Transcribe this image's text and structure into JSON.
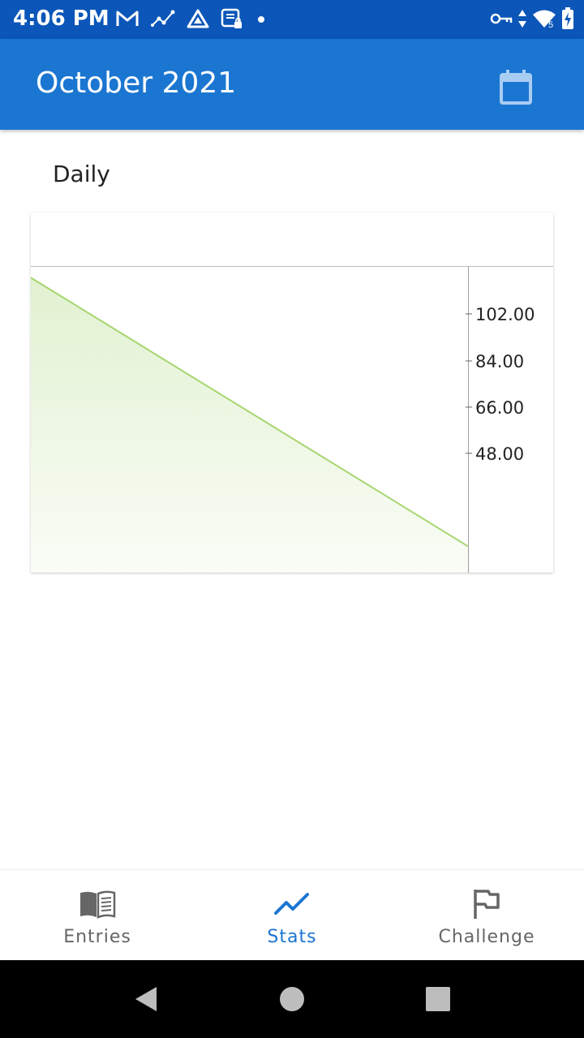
{
  "status_bar": {
    "time": "4:06 PM",
    "left_icons": [
      "gmail-icon",
      "activity-graph-icon",
      "drive-icon",
      "secure-folder-icon",
      "notification-dot-icon"
    ],
    "right_icons": [
      "vpn-key-icon",
      "data-arrows-icon",
      "wifi-icon",
      "battery-charging-icon"
    ],
    "wifi_badge": "5"
  },
  "app_bar": {
    "title": "October 2021",
    "calendar_icon": "calendar-icon"
  },
  "section": {
    "title": "Daily"
  },
  "chart_data": {
    "type": "area",
    "x": [
      1,
      2
    ],
    "values": [
      116,
      12
    ],
    "yticks": [
      "102.00",
      "84.00",
      "66.00",
      "48.00"
    ],
    "colors": {
      "line": "#a6d66f",
      "fill": "#dcefc8"
    }
  },
  "bottom_nav": {
    "items": [
      {
        "label": "Entries",
        "icon": "book-icon",
        "active": false
      },
      {
        "label": "Stats",
        "icon": "trending-up-icon",
        "active": true
      },
      {
        "label": "Challenge",
        "icon": "flag-icon",
        "active": false
      }
    ],
    "active_color": "#1b76d2",
    "inactive_color": "#666666"
  },
  "system_nav": {
    "buttons": [
      "back-icon",
      "home-icon",
      "recents-icon"
    ]
  }
}
